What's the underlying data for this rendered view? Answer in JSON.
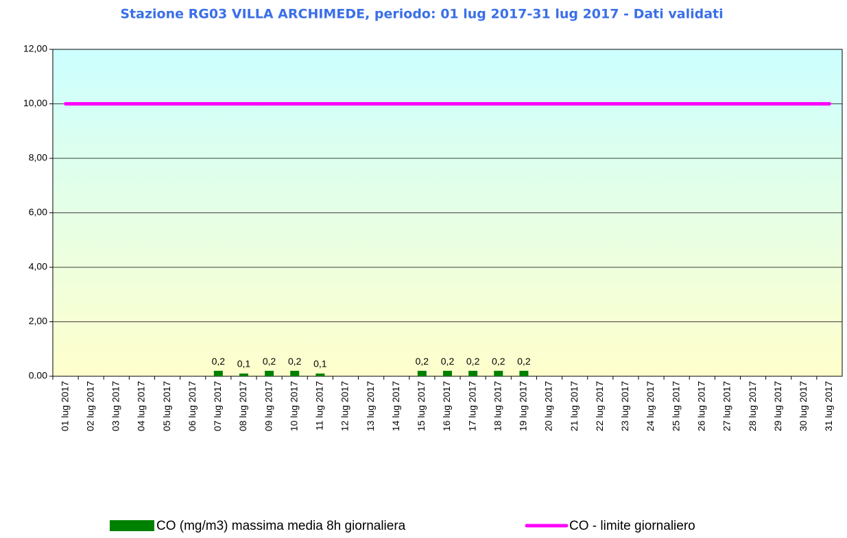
{
  "chart_data": {
    "type": "bar",
    "title": "Stazione RG03 VILLA ARCHIMEDE, periodo: 01 lug 2017-31 lug 2017 - Dati validati",
    "categories": [
      "01 lug 2017",
      "02 lug 2017",
      "03 lug 2017",
      "04 lug 2017",
      "05 lug 2017",
      "06 lug 2017",
      "07 lug 2017",
      "08 lug 2017",
      "09 lug 2017",
      "10 lug 2017",
      "11 lug 2017",
      "12 lug 2017",
      "13 lug 2017",
      "14 lug 2017",
      "15 lug 2017",
      "16 lug 2017",
      "17 lug 2017",
      "18 lug 2017",
      "19 lug 2017",
      "20 lug 2017",
      "21 lug 2017",
      "22 lug 2017",
      "23 lug 2017",
      "24 lug 2017",
      "25 lug 2017",
      "26 lug 2017",
      "27 lug 2017",
      "28 lug 2017",
      "29 lug 2017",
      "30 lug 2017",
      "31 lug 2017"
    ],
    "series": [
      {
        "name": "CO (mg/m3) massima media 8h giornaliera",
        "type": "bar",
        "color": "#008000",
        "values": [
          null,
          null,
          null,
          null,
          null,
          null,
          0.2,
          0.1,
          0.2,
          0.2,
          0.1,
          null,
          null,
          null,
          0.2,
          0.2,
          0.2,
          0.2,
          0.2,
          null,
          null,
          null,
          null,
          null,
          null,
          null,
          null,
          null,
          null,
          null,
          null
        ],
        "value_labels": [
          null,
          null,
          null,
          null,
          null,
          null,
          "0,2",
          "0,1",
          "0,2",
          "0,2",
          "0,1",
          null,
          null,
          null,
          "0,2",
          "0,2",
          "0,2",
          "0,2",
          "0,2",
          null,
          null,
          null,
          null,
          null,
          null,
          null,
          null,
          null,
          null,
          null,
          null
        ]
      },
      {
        "name": "CO - limite giornaliero",
        "type": "line",
        "color": "#ff00ff",
        "values": [
          10,
          10,
          10,
          10,
          10,
          10,
          10,
          10,
          10,
          10,
          10,
          10,
          10,
          10,
          10,
          10,
          10,
          10,
          10,
          10,
          10,
          10,
          10,
          10,
          10,
          10,
          10,
          10,
          10,
          10,
          10
        ]
      }
    ],
    "ylim": [
      0,
      12
    ],
    "yticks": [
      {
        "value": 0,
        "label": "0.00"
      },
      {
        "value": 2,
        "label": "2,00"
      },
      {
        "value": 4,
        "label": "4,00"
      },
      {
        "value": 6,
        "label": "6,00"
      },
      {
        "value": 8,
        "label": "8,00"
      },
      {
        "value": 10,
        "label": "10,00"
      },
      {
        "value": 12,
        "label": "12,00"
      }
    ],
    "grid": true
  }
}
